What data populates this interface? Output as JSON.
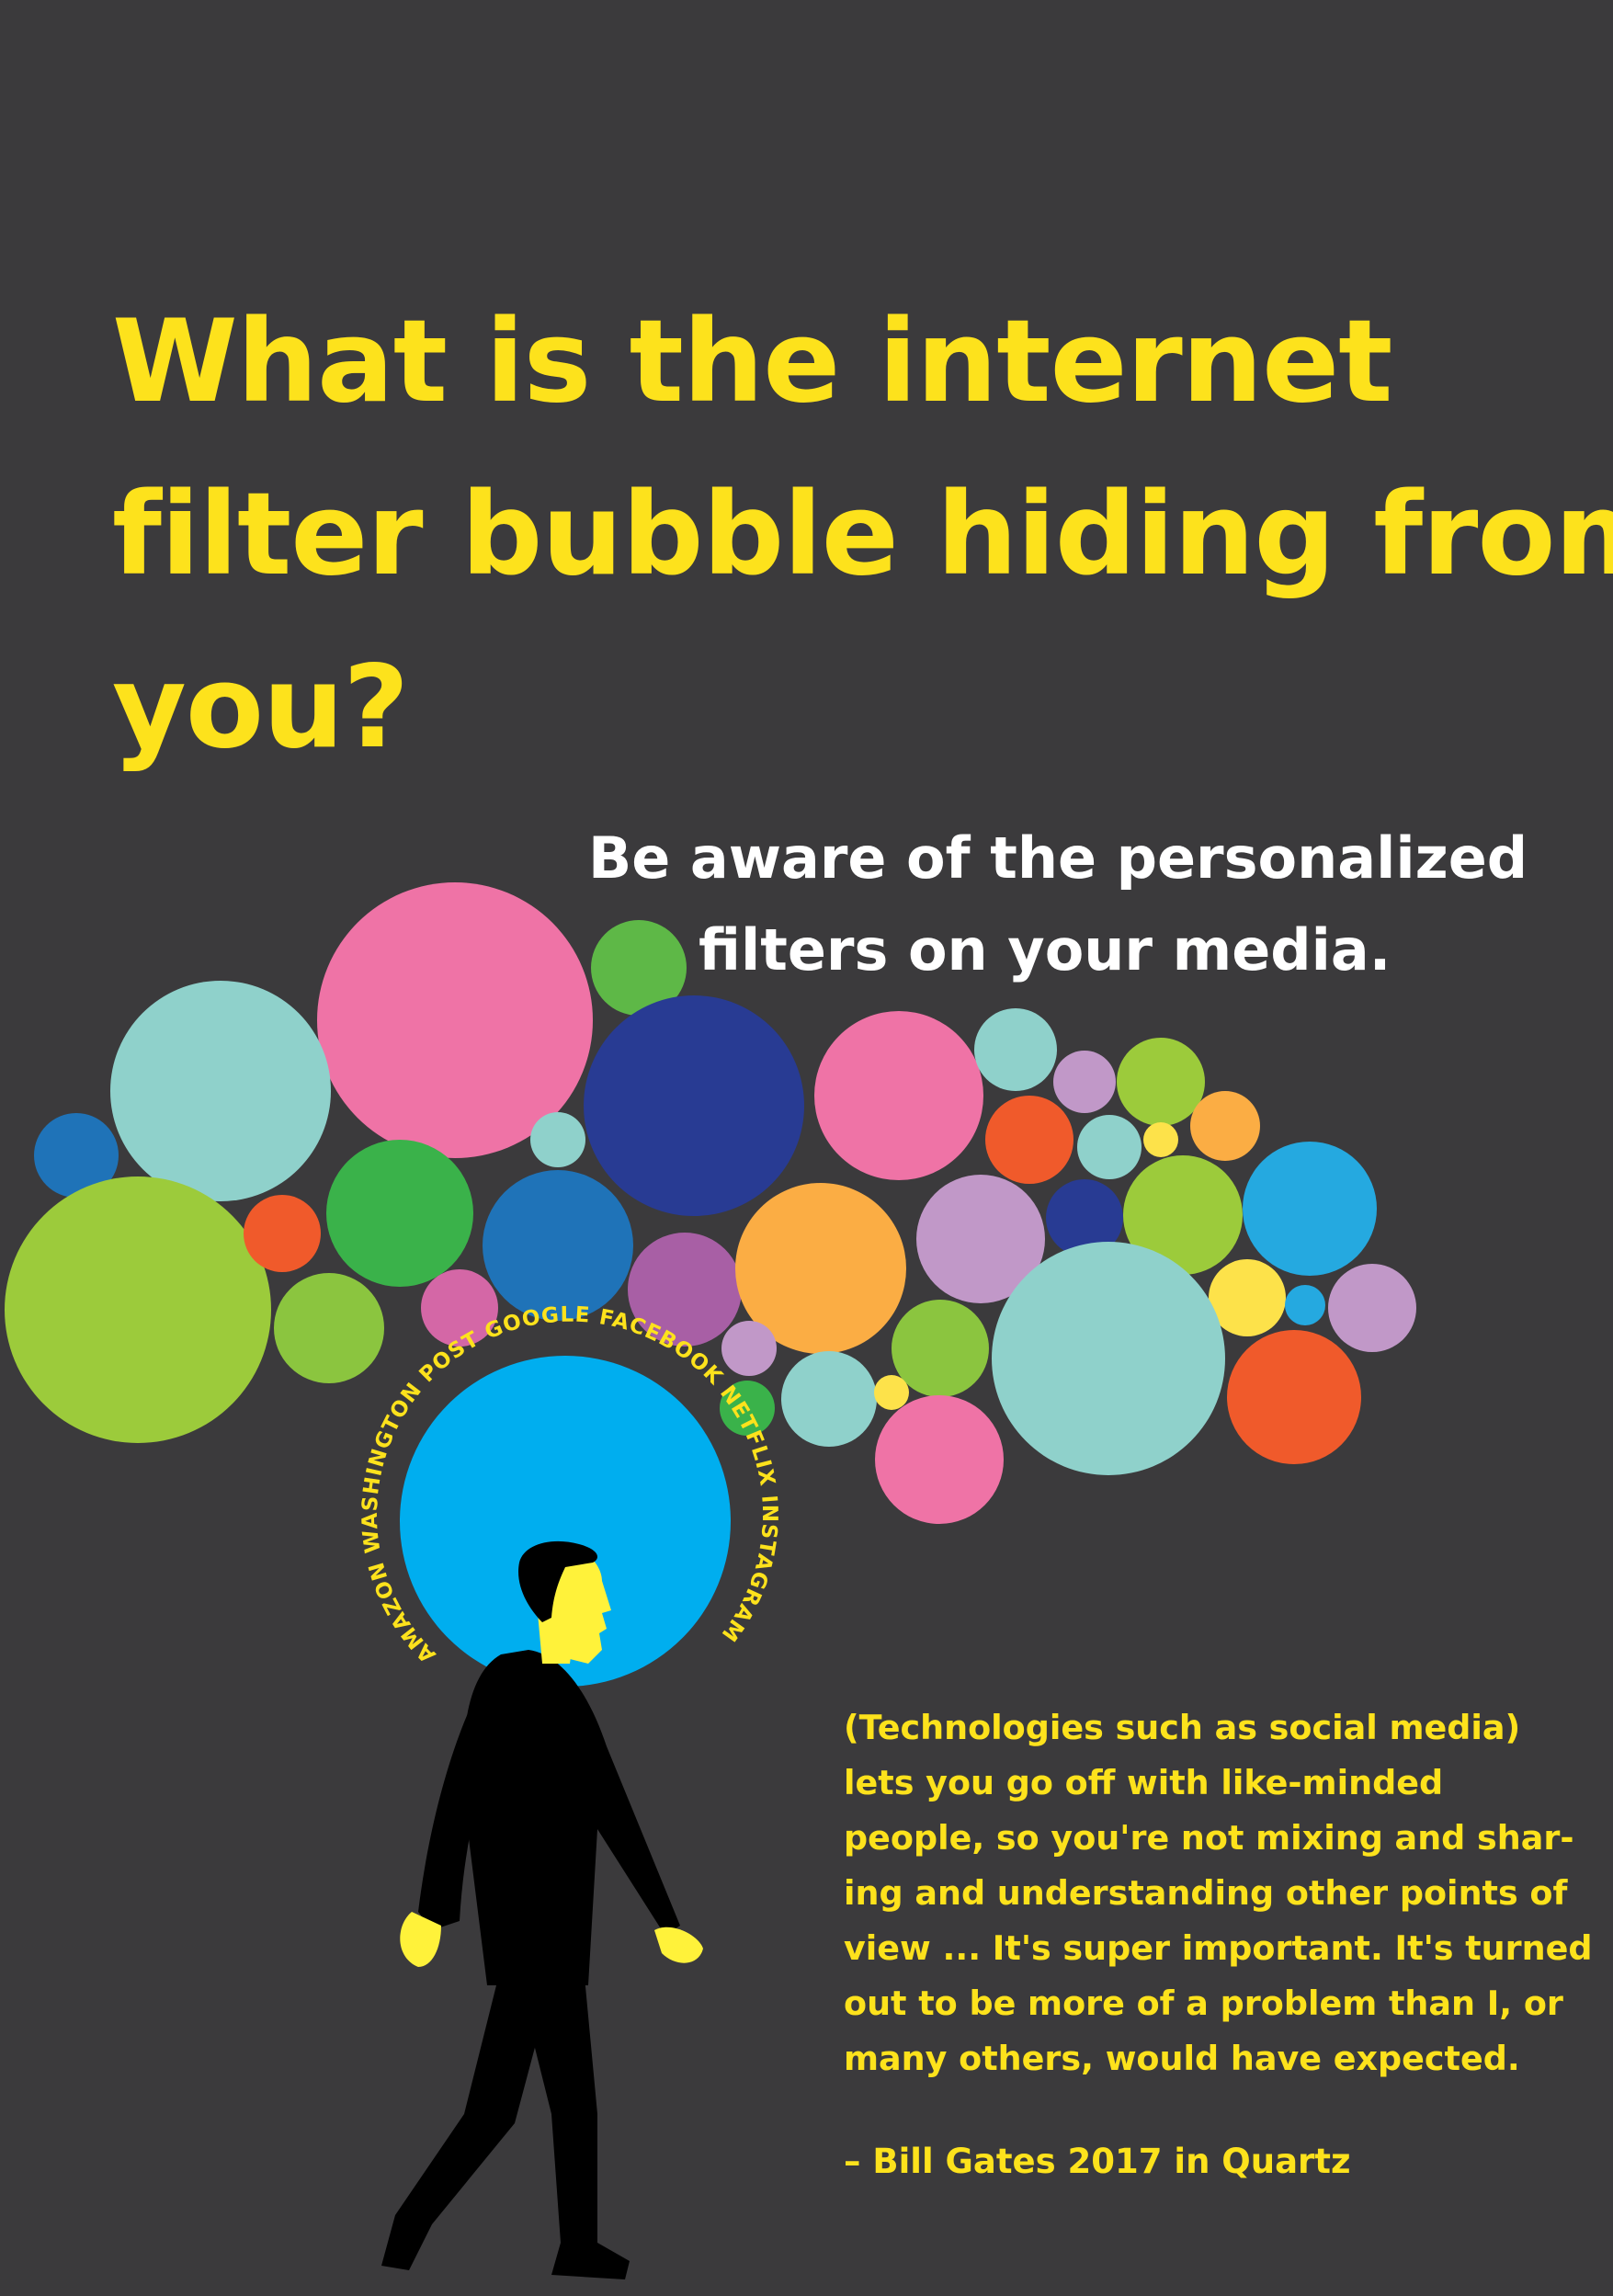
{
  "headline": {
    "lines": [
      "What is the internet",
      "filter bubble hiding from",
      "you?"
    ]
  },
  "subhead": {
    "lines": [
      "Be aware of the personalized",
      "filters on your media."
    ]
  },
  "ring_labels": [
    "AMAZON",
    "WASHINGTON POST",
    "GOOGLE",
    "FACEBOOK",
    "NETFLIX",
    "INSTAGRAM"
  ],
  "quote": {
    "lines": [
      "(Technologies such as social media)",
      "lets you go off with like-minded",
      "people, so you're not mixing and shar-",
      "ing and understanding other points of",
      "view ... It's super important. It's turned",
      "out to be more of a problem than I, or",
      "many others, would have expected."
    ],
    "attribution": "– Bill Gates 2017 in Quartz"
  },
  "colors": {
    "background": "#3b3a3c",
    "headline": "#fde21c",
    "subhead": "#ffffff",
    "halo": "#00aeef",
    "figure": "#000000",
    "skin": "#fff23a"
  }
}
